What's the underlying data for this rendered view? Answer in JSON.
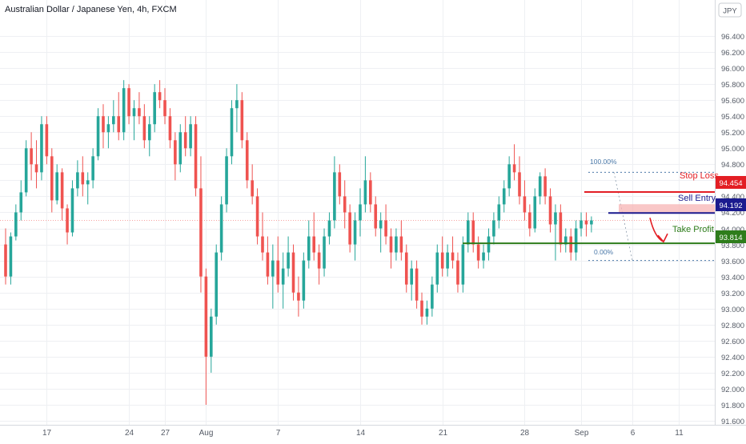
{
  "header": {
    "title": "Australian Dollar / Japanese Yen, 4h, FXCM",
    "currency_button": "JPY"
  },
  "chart_data": {
    "type": "candlestick",
    "title": "Australian Dollar / Japanese Yen, 4h, FXCM",
    "ylim": [
      91.6,
      96.6
    ],
    "y_ticks": [
      "96.400",
      "96.200",
      "96.000",
      "95.800",
      "95.600",
      "95.400",
      "95.200",
      "95.000",
      "94.800",
      "94.600",
      "94.400",
      "94.200",
      "94.000",
      "93.800",
      "93.600",
      "93.400",
      "93.200",
      "93.000",
      "92.800",
      "92.600",
      "92.400",
      "92.200",
      "92.000",
      "91.800",
      "91.600"
    ],
    "x_ticks": [
      {
        "label": "17",
        "i": 8
      },
      {
        "label": "24",
        "i": 24
      },
      {
        "label": "27",
        "i": 31
      },
      {
        "label": "Aug",
        "i": 39
      },
      {
        "label": "7",
        "i": 53
      },
      {
        "label": "14",
        "i": 69
      },
      {
        "label": "21",
        "i": 85
      },
      {
        "label": "28",
        "i": 101
      },
      {
        "label": "Sep",
        "i": 112
      },
      {
        "label": "6",
        "i": 122
      },
      {
        "label": "11",
        "i": 131
      }
    ],
    "candles": [
      [
        93.8,
        94.0,
        93.3,
        93.4
      ],
      [
        93.4,
        93.95,
        93.3,
        93.9
      ],
      [
        93.9,
        94.3,
        93.85,
        94.2
      ],
      [
        94.2,
        94.6,
        94.1,
        94.45
      ],
      [
        94.45,
        95.1,
        94.4,
        95.0
      ],
      [
        95.0,
        95.2,
        94.6,
        94.8
      ],
      [
        94.8,
        95.1,
        94.5,
        94.7
      ],
      [
        94.7,
        95.4,
        94.6,
        95.3
      ],
      [
        95.3,
        95.4,
        94.8,
        94.9
      ],
      [
        94.9,
        95.0,
        94.2,
        94.35
      ],
      [
        94.35,
        94.8,
        94.3,
        94.7
      ],
      [
        94.7,
        94.75,
        94.1,
        94.25
      ],
      [
        94.25,
        94.3,
        93.8,
        93.95
      ],
      [
        93.95,
        94.6,
        93.9,
        94.5
      ],
      [
        94.5,
        94.85,
        94.4,
        94.7
      ],
      [
        94.7,
        94.9,
        94.4,
        94.55
      ],
      [
        94.55,
        94.7,
        94.3,
        94.6
      ],
      [
        94.6,
        95.0,
        94.5,
        94.9
      ],
      [
        94.9,
        95.5,
        94.85,
        95.4
      ],
      [
        95.4,
        95.55,
        95.0,
        95.2
      ],
      [
        95.2,
        95.4,
        95.0,
        95.3
      ],
      [
        95.3,
        95.6,
        95.2,
        95.4
      ],
      [
        95.4,
        95.7,
        95.1,
        95.2
      ],
      [
        95.2,
        95.85,
        95.1,
        95.75
      ],
      [
        95.75,
        95.8,
        95.3,
        95.4
      ],
      [
        95.4,
        95.6,
        95.1,
        95.5
      ],
      [
        95.5,
        95.7,
        95.3,
        95.4
      ],
      [
        95.4,
        95.55,
        95.0,
        95.1
      ],
      [
        95.1,
        95.4,
        94.9,
        95.3
      ],
      [
        95.3,
        95.8,
        95.2,
        95.7
      ],
      [
        95.7,
        95.85,
        95.5,
        95.6
      ],
      [
        95.6,
        95.75,
        95.3,
        95.4
      ],
      [
        95.4,
        95.5,
        95.0,
        95.1
      ],
      [
        95.1,
        95.2,
        94.6,
        94.8
      ],
      [
        94.8,
        95.3,
        94.7,
        95.2
      ],
      [
        95.2,
        95.4,
        94.9,
        95.0
      ],
      [
        95.0,
        95.4,
        94.9,
        95.3
      ],
      [
        95.3,
        95.4,
        94.4,
        94.5
      ],
      [
        94.5,
        94.9,
        93.2,
        93.4
      ],
      [
        93.4,
        93.5,
        91.8,
        92.4
      ],
      [
        92.4,
        93.0,
        92.2,
        92.9
      ],
      [
        92.9,
        93.8,
        92.8,
        93.7
      ],
      [
        93.7,
        94.4,
        93.6,
        94.3
      ],
      [
        94.3,
        95.0,
        94.2,
        94.9
      ],
      [
        94.9,
        95.6,
        94.8,
        95.5
      ],
      [
        95.5,
        95.8,
        95.2,
        95.6
      ],
      [
        95.6,
        95.7,
        95.0,
        95.1
      ],
      [
        95.1,
        95.2,
        94.5,
        94.6
      ],
      [
        94.6,
        94.8,
        94.3,
        94.4
      ],
      [
        94.4,
        94.5,
        93.8,
        93.9
      ],
      [
        93.9,
        94.2,
        93.6,
        93.7
      ],
      [
        93.7,
        93.9,
        93.3,
        93.4
      ],
      [
        93.4,
        93.8,
        93.0,
        93.6
      ],
      [
        93.6,
        93.9,
        93.2,
        93.3
      ],
      [
        93.3,
        93.7,
        93.0,
        93.5
      ],
      [
        93.5,
        93.9,
        93.4,
        93.7
      ],
      [
        93.7,
        93.8,
        93.1,
        93.2
      ],
      [
        93.2,
        93.4,
        92.9,
        93.1
      ],
      [
        93.1,
        93.7,
        93.0,
        93.6
      ],
      [
        93.6,
        94.1,
        93.5,
        93.9
      ],
      [
        93.9,
        94.2,
        93.6,
        93.7
      ],
      [
        93.7,
        93.8,
        93.3,
        93.5
      ],
      [
        93.5,
        94.0,
        93.4,
        93.9
      ],
      [
        93.9,
        94.2,
        93.8,
        94.1
      ],
      [
        94.1,
        94.9,
        94.0,
        94.7
      ],
      [
        94.7,
        94.8,
        94.3,
        94.4
      ],
      [
        94.4,
        94.6,
        94.0,
        94.2
      ],
      [
        94.2,
        94.3,
        93.7,
        93.8
      ],
      [
        93.8,
        94.2,
        93.6,
        94.1
      ],
      [
        94.1,
        94.5,
        93.9,
        94.3
      ],
      [
        94.3,
        94.9,
        94.2,
        94.6
      ],
      [
        94.6,
        94.7,
        94.2,
        94.3
      ],
      [
        94.3,
        94.4,
        93.9,
        94.0
      ],
      [
        94.0,
        94.2,
        93.7,
        94.1
      ],
      [
        94.1,
        94.3,
        93.8,
        93.9
      ],
      [
        93.9,
        94.0,
        93.5,
        93.7
      ],
      [
        93.7,
        94.0,
        93.6,
        93.9
      ],
      [
        93.9,
        94.1,
        93.6,
        93.7
      ],
      [
        93.7,
        93.8,
        93.2,
        93.3
      ],
      [
        93.3,
        93.6,
        93.1,
        93.5
      ],
      [
        93.5,
        93.6,
        93.0,
        93.1
      ],
      [
        93.1,
        93.2,
        92.8,
        92.9
      ],
      [
        92.9,
        93.1,
        92.8,
        93.0
      ],
      [
        93.0,
        93.4,
        92.9,
        93.3
      ],
      [
        93.3,
        93.8,
        93.2,
        93.7
      ],
      [
        93.7,
        93.9,
        93.4,
        93.5
      ],
      [
        93.5,
        93.8,
        93.4,
        93.7
      ],
      [
        93.7,
        93.9,
        93.5,
        93.6
      ],
      [
        93.6,
        93.7,
        93.2,
        93.3
      ],
      [
        93.3,
        93.9,
        93.2,
        93.8
      ],
      [
        93.8,
        94.2,
        93.7,
        94.1
      ],
      [
        94.1,
        94.2,
        93.7,
        93.8
      ],
      [
        93.8,
        93.9,
        93.5,
        93.6
      ],
      [
        93.6,
        93.8,
        93.5,
        93.7
      ],
      [
        93.7,
        94.0,
        93.6,
        93.9
      ],
      [
        93.9,
        94.2,
        93.8,
        94.1
      ],
      [
        94.1,
        94.4,
        94.0,
        94.3
      ],
      [
        94.3,
        94.6,
        94.2,
        94.5
      ],
      [
        94.5,
        94.9,
        94.4,
        94.8
      ],
      [
        94.8,
        95.05,
        94.6,
        94.7
      ],
      [
        94.7,
        94.9,
        94.3,
        94.4
      ],
      [
        94.4,
        94.6,
        94.1,
        94.2
      ],
      [
        94.2,
        94.3,
        93.9,
        94.0
      ],
      [
        94.0,
        94.5,
        93.95,
        94.4
      ],
      [
        94.4,
        94.7,
        94.3,
        94.65
      ],
      [
        94.65,
        94.75,
        94.3,
        94.4
      ],
      [
        94.4,
        94.5,
        93.95,
        94.05
      ],
      [
        94.05,
        94.3,
        93.6,
        94.2
      ],
      [
        94.2,
        94.3,
        93.7,
        93.8
      ],
      [
        93.8,
        94.0,
        93.7,
        93.9
      ],
      [
        93.9,
        94.0,
        93.6,
        93.7
      ],
      [
        93.7,
        94.1,
        93.6,
        94.0
      ],
      [
        94.0,
        94.2,
        93.9,
        94.1
      ],
      [
        94.1,
        94.2,
        93.9,
        94.05
      ],
      [
        94.05,
        94.15,
        93.95,
        94.1
      ]
    ],
    "fib_levels": [
      {
        "label": "100.00%",
        "value": 94.7
      },
      {
        "label": "0.00%",
        "value": 93.6
      }
    ],
    "annotations": {
      "stop_loss": {
        "label": "Stop Loss",
        "value": 94.454,
        "tag": "94.454",
        "color": "#e31e24"
      },
      "sell_entry": {
        "label": "Sell Entry",
        "value": 94.192,
        "tag": "94.192",
        "color": "#1b1b8f"
      },
      "take_profit": {
        "label": "Take Profit",
        "value": 93.814,
        "tag": "93.814",
        "color": "#2e7d1b"
      }
    },
    "colors": {
      "up": "#26a69a",
      "down": "#ef5350",
      "grid": "#eef0f3"
    }
  }
}
